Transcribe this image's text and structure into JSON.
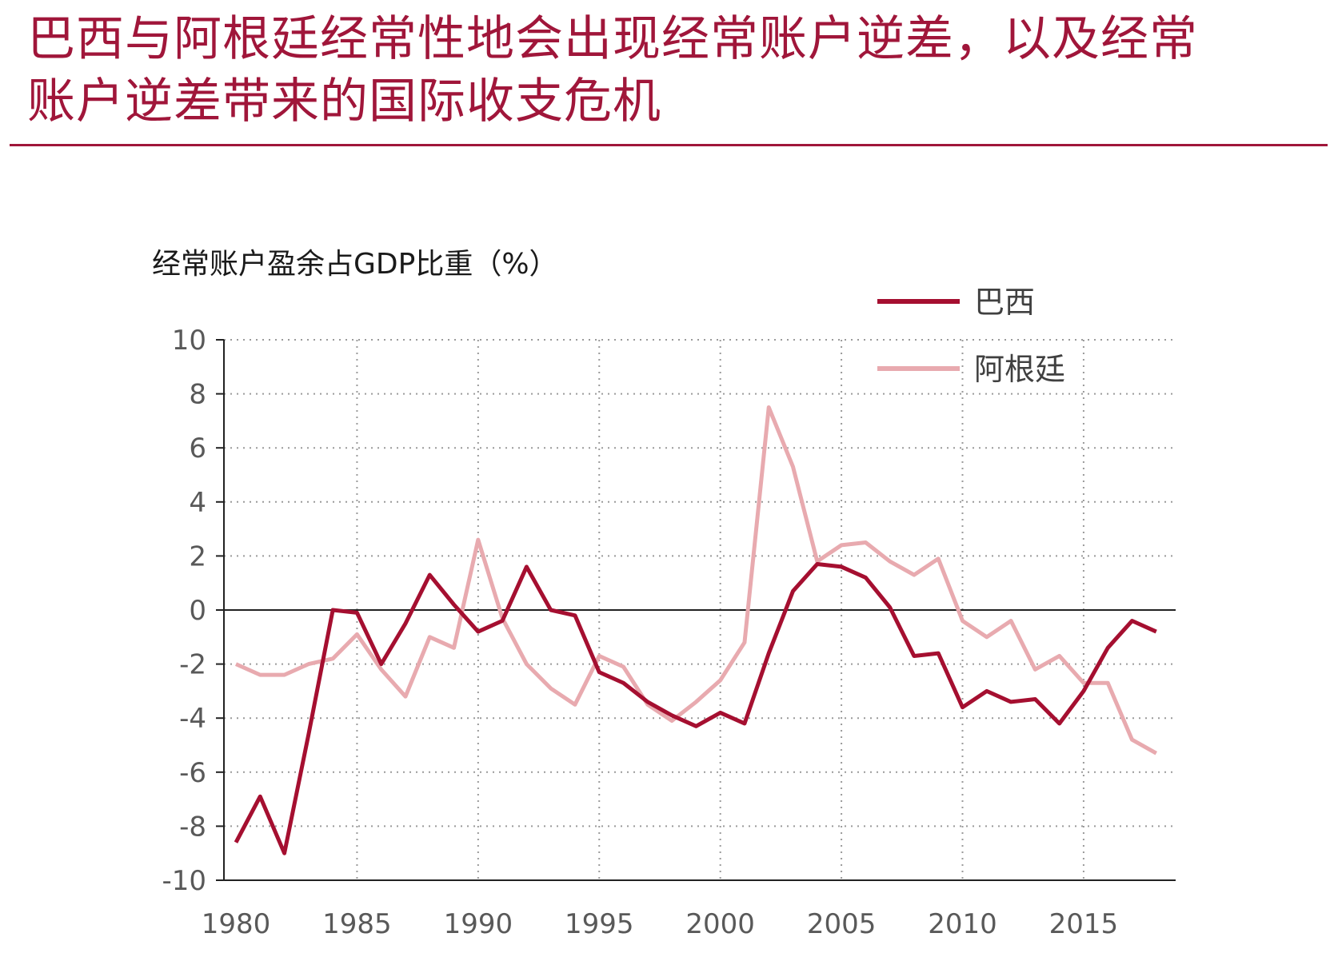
{
  "header": {
    "title_line1": "巴西与阿根廷经常性地会出现经常账户逆差，以及经常",
    "title_line2": "账户逆差带来的国际收支危机"
  },
  "colors": {
    "title": "#a0163a",
    "brazil": "#a50f30",
    "argentina": "#e8aaaf"
  },
  "chart_data": {
    "type": "line",
    "title": "",
    "ylabel": "经常账户盈余占GDP比重（%）",
    "xlabel": "",
    "ylim": [
      -10,
      10
    ],
    "yticks": [
      10,
      8,
      6,
      4,
      2,
      0,
      -2,
      -4,
      -6,
      -8,
      -10
    ],
    "xticks": [
      1980,
      1985,
      1990,
      1995,
      2000,
      2005,
      2010,
      2015
    ],
    "grid": true,
    "legend_position": "top-right",
    "x": [
      1980,
      1981,
      1982,
      1983,
      1984,
      1985,
      1986,
      1987,
      1988,
      1989,
      1990,
      1991,
      1992,
      1993,
      1994,
      1995,
      1996,
      1997,
      1998,
      1999,
      2000,
      2001,
      2002,
      2003,
      2004,
      2005,
      2006,
      2007,
      2008,
      2009,
      2010,
      2011,
      2012,
      2013,
      2014,
      2015,
      2016,
      2017,
      2018
    ],
    "series": [
      {
        "name": "巴西",
        "values": [
          -8.6,
          -6.9,
          -9.0,
          -4.6,
          0.0,
          -0.1,
          -2.0,
          -0.5,
          1.3,
          0.2,
          -0.8,
          -0.4,
          1.6,
          0.0,
          -0.2,
          -2.3,
          -2.7,
          -3.4,
          -3.9,
          -4.3,
          -3.8,
          -4.2,
          -1.6,
          0.7,
          1.7,
          1.6,
          1.2,
          0.1,
          -1.7,
          -1.6,
          -3.6,
          -3.0,
          -3.4,
          -3.3,
          -4.2,
          -3.0,
          -1.4,
          -0.4,
          -0.8
        ]
      },
      {
        "name": "阿根廷",
        "values": [
          -2.0,
          -2.4,
          -2.4,
          -2.0,
          -1.8,
          -0.9,
          -2.2,
          -3.2,
          -1.0,
          -1.4,
          2.6,
          -0.3,
          -2.0,
          -2.9,
          -3.5,
          -1.7,
          -2.1,
          -3.5,
          -4.1,
          -3.4,
          -2.6,
          -1.2,
          7.5,
          5.3,
          1.8,
          2.4,
          2.5,
          1.8,
          1.3,
          1.9,
          -0.4,
          -1.0,
          -0.4,
          -2.2,
          -1.7,
          -2.7,
          -2.7,
          -4.8,
          -5.3
        ]
      }
    ]
  }
}
